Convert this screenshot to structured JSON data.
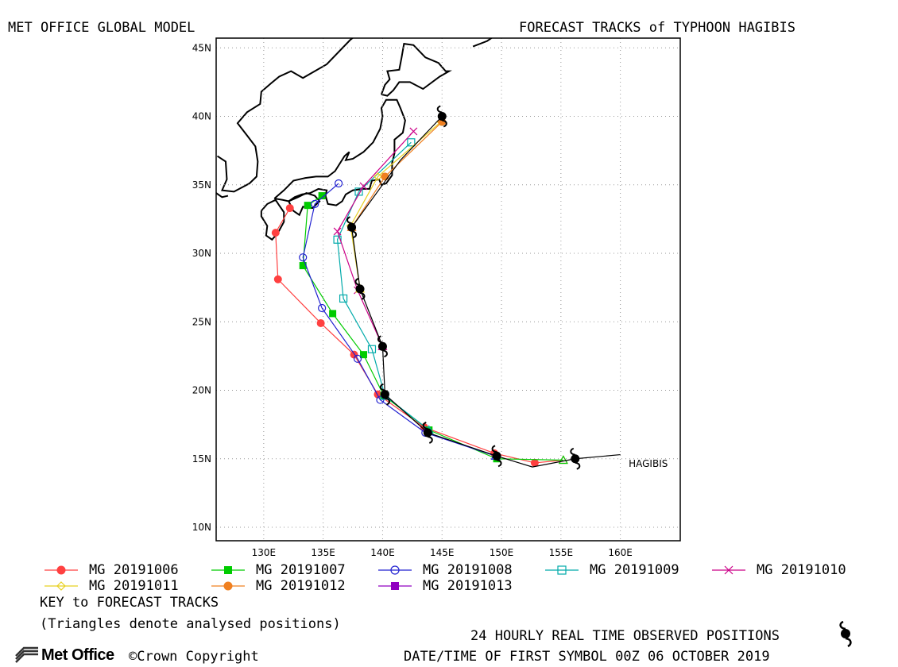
{
  "header": {
    "left_title": "MET OFFICE GLOBAL MODEL",
    "right_title": "FORECAST TRACKS of TYPHOON HAGIBIS"
  },
  "footer": {
    "key_title": "KEY to FORECAST TRACKS",
    "key_note": "(Triangles denote analysed positions)",
    "observed_note": "24 HOURLY REAL TIME OBSERVED POSITIONS",
    "first_symbol_note": "DATE/TIME OF FIRST SYMBOL 00Z 06 OCTOBER 2019",
    "logo_text": "Met Office",
    "copyright": "©Crown Copyright"
  },
  "chart_data": {
    "type": "line",
    "map": "tropical cyclone forecast tracks, western North Pacific",
    "xlim": [
      126,
      164.5
    ],
    "ylim": [
      9,
      46
    ],
    "x_ticks": [
      {
        "value": 130,
        "label": "130E"
      },
      {
        "value": 135,
        "label": "135E"
      },
      {
        "value": 140,
        "label": "140E"
      },
      {
        "value": 145,
        "label": "145E"
      },
      {
        "value": 150,
        "label": "150E"
      },
      {
        "value": 155,
        "label": "155E"
      },
      {
        "value": 160,
        "label": "160E"
      }
    ],
    "y_ticks": [
      {
        "value": 10,
        "label": "10N"
      },
      {
        "value": 15,
        "label": "15N"
      },
      {
        "value": 20,
        "label": "20N"
      },
      {
        "value": 25,
        "label": "25N"
      },
      {
        "value": 30,
        "label": "30N"
      },
      {
        "value": 35,
        "label": "35N"
      },
      {
        "value": 40,
        "label": "40N"
      },
      {
        "value": 45,
        "label": "45N"
      }
    ],
    "grid": true,
    "storm_label": {
      "text": "HAGIBIS",
      "lon": 160.7,
      "lat": 14.4
    },
    "observed_track": {
      "color": "#000000",
      "line": [
        [
          160,
          15.3
        ],
        [
          156.2,
          15.0
        ],
        [
          152.6,
          14.4
        ],
        [
          149.6,
          15.2
        ],
        [
          143.8,
          16.9
        ],
        [
          140.2,
          19.7
        ],
        [
          140.0,
          23.2
        ],
        [
          138.1,
          27.4
        ],
        [
          137.4,
          31.9
        ],
        [
          141.5,
          36.8
        ],
        [
          145.0,
          40.0
        ]
      ],
      "symbols": [
        [
          156.2,
          15.0
        ],
        [
          149.6,
          15.2
        ],
        [
          143.8,
          16.9
        ],
        [
          140.2,
          19.7
        ],
        [
          140.0,
          23.2
        ],
        [
          138.1,
          27.4
        ],
        [
          137.4,
          31.9
        ],
        [
          145.0,
          40.0
        ]
      ]
    },
    "series": [
      {
        "name": "MG 20191006",
        "color": "#ff4040",
        "marker": "filled-circle",
        "points": [
          [
            155.2,
            14.9
          ],
          [
            152.8,
            14.7
          ],
          [
            149.4,
            15.4
          ],
          [
            143.5,
            17.3
          ],
          [
            139.6,
            19.7
          ],
          [
            137.6,
            22.6
          ],
          [
            134.8,
            24.9
          ],
          [
            131.2,
            28.1
          ],
          [
            131.0,
            31.5
          ],
          [
            132.2,
            33.3
          ]
        ]
      },
      {
        "name": "MG 20191007",
        "color": "#00cc00",
        "marker": "filled-square",
        "points": [
          [
            155.2,
            14.9
          ],
          [
            149.6,
            15.0
          ],
          [
            143.9,
            17.1
          ],
          [
            140.1,
            19.6
          ],
          [
            138.4,
            22.6
          ],
          [
            135.8,
            25.6
          ],
          [
            133.3,
            29.1
          ],
          [
            133.7,
            33.5
          ],
          [
            134.9,
            34.2
          ]
        ]
      },
      {
        "name": "MG 20191008",
        "color": "#2020d0",
        "marker": "open-circle",
        "points": [
          [
            149.5,
            15.2
          ],
          [
            143.6,
            16.9
          ],
          [
            139.8,
            19.3
          ],
          [
            137.9,
            22.3
          ],
          [
            134.9,
            26.0
          ],
          [
            133.3,
            29.7
          ],
          [
            134.3,
            33.6
          ],
          [
            136.3,
            35.1
          ]
        ]
      },
      {
        "name": "MG 20191009",
        "color": "#00aaaa",
        "marker": "open-square",
        "points": [
          [
            143.9,
            17.1
          ],
          [
            140.2,
            19.6
          ],
          [
            139.1,
            23.0
          ],
          [
            136.7,
            26.7
          ],
          [
            136.2,
            31.0
          ],
          [
            138.0,
            34.5
          ],
          [
            142.4,
            38.1
          ]
        ]
      },
      {
        "name": "MG 20191010",
        "color": "#cc0088",
        "marker": "x",
        "points": [
          [
            140.0,
            23.2
          ],
          [
            137.9,
            27.3
          ],
          [
            136.2,
            31.6
          ],
          [
            138.4,
            34.9
          ],
          [
            142.6,
            38.9
          ]
        ]
      },
      {
        "name": "MG 20191011",
        "color": "#e8d020",
        "marker": "open-diamond",
        "points": [
          [
            138.1,
            27.4
          ],
          [
            137.3,
            32.0
          ],
          [
            139.6,
            35.6
          ],
          [
            144.9,
            39.6
          ]
        ]
      },
      {
        "name": "MG 20191012",
        "color": "#f08020",
        "marker": "filled-circle",
        "points": [
          [
            137.4,
            31.9
          ],
          [
            140.2,
            35.6
          ],
          [
            145.0,
            39.6
          ]
        ]
      },
      {
        "name": "MG 20191013",
        "color": "#9000c0",
        "marker": "filled-square",
        "points": []
      }
    ]
  }
}
